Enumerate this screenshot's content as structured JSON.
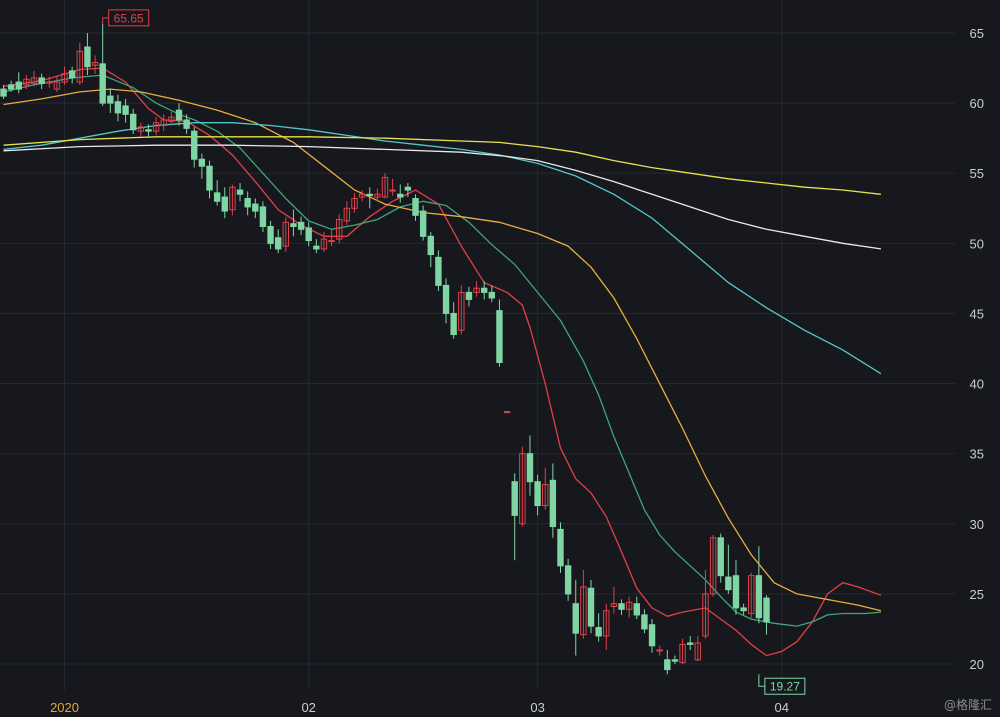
{
  "watermark": "@格隆汇",
  "colors": {
    "background": "#16181d",
    "up": "#e0404a",
    "down": "#7fd6a4",
    "grid": "#262931"
  },
  "chart_data": {
    "type": "candlestick",
    "y_ticks": [
      20,
      25,
      30,
      35,
      40,
      45,
      50,
      55,
      60,
      65
    ],
    "ylim": [
      18.5,
      67.3
    ],
    "x_ticks": [
      {
        "label": "2020",
        "index": 8,
        "style": "year"
      },
      {
        "label": "02",
        "index": 40
      },
      {
        "label": "03",
        "index": 70
      },
      {
        "label": "04",
        "index": 102
      }
    ],
    "annotations": [
      {
        "label": "65.65",
        "index": 13,
        "value": 65.65,
        "kind": "high"
      },
      {
        "label": "19.27",
        "index": 99,
        "value": 19.27,
        "kind": "low"
      }
    ],
    "candles": [
      [
        61.0,
        60.5,
        61.3,
        60.3
      ],
      [
        61.3,
        61.0,
        61.6,
        60.8
      ],
      [
        61.5,
        61.0,
        62.2,
        60.7
      ],
      [
        61.3,
        61.7,
        62.0,
        61.0
      ],
      [
        61.4,
        61.8,
        62.3,
        61.2
      ],
      [
        61.8,
        61.4,
        62.1,
        61.0
      ],
      [
        61.5,
        61.5,
        61.9,
        61.1
      ],
      [
        61.0,
        61.5,
        61.9,
        60.8
      ],
      [
        61.5,
        62.1,
        62.6,
        61.3
      ],
      [
        62.3,
        61.8,
        62.6,
        61.4
      ],
      [
        61.5,
        63.7,
        64.3,
        61.3
      ],
      [
        64.0,
        62.6,
        65.0,
        62.0
      ],
      [
        62.7,
        62.9,
        63.4,
        62.1
      ],
      [
        62.8,
        60.0,
        65.65,
        59.8
      ],
      [
        60.5,
        60.0,
        61.0,
        59.3
      ],
      [
        60.1,
        59.3,
        60.6,
        58.7
      ],
      [
        59.8,
        59.2,
        60.3,
        58.6
      ],
      [
        59.2,
        58.1,
        59.6,
        57.8
      ],
      [
        58.0,
        58.3,
        58.6,
        57.6
      ],
      [
        58.1,
        58.0,
        58.5,
        57.6
      ],
      [
        58.0,
        58.6,
        59.0,
        57.7
      ],
      [
        58.4,
        58.8,
        59.2,
        58.0
      ],
      [
        58.7,
        59.0,
        59.4,
        58.4
      ],
      [
        59.5,
        58.8,
        60.0,
        58.4
      ],
      [
        58.8,
        58.2,
        59.2,
        57.8
      ],
      [
        58.0,
        56.0,
        58.3,
        55.4
      ],
      [
        56.0,
        55.5,
        56.4,
        54.6
      ],
      [
        55.5,
        53.8,
        55.9,
        53.2
      ],
      [
        53.6,
        53.0,
        54.5,
        52.7
      ],
      [
        53.3,
        52.3,
        54.0,
        51.8
      ],
      [
        52.4,
        54.0,
        54.2,
        52.0
      ],
      [
        53.8,
        53.5,
        54.3,
        53.0
      ],
      [
        53.2,
        52.6,
        53.7,
        52.0
      ],
      [
        52.8,
        52.3,
        53.2,
        51.8
      ],
      [
        52.6,
        51.2,
        53.0,
        50.8
      ],
      [
        51.2,
        50.0,
        51.6,
        49.6
      ],
      [
        50.4,
        49.6,
        51.0,
        49.3
      ],
      [
        49.8,
        51.5,
        51.9,
        49.4
      ],
      [
        51.4,
        51.2,
        52.4,
        50.5
      ],
      [
        51.5,
        51.0,
        51.9,
        50.6
      ],
      [
        51.1,
        50.2,
        51.5,
        49.8
      ],
      [
        49.8,
        49.6,
        50.3,
        49.3
      ],
      [
        49.6,
        50.3,
        50.8,
        49.4
      ],
      [
        50.2,
        50.2,
        51.0,
        49.8
      ],
      [
        50.3,
        51.7,
        52.1,
        50.0
      ],
      [
        51.6,
        52.5,
        53.0,
        51.3
      ],
      [
        52.5,
        53.2,
        53.6,
        52.2
      ],
      [
        53.3,
        53.5,
        53.8,
        53.0
      ],
      [
        53.5,
        53.4,
        54.0,
        52.5
      ],
      [
        53.3,
        53.5,
        53.9,
        53.0
      ],
      [
        53.3,
        54.7,
        55.0,
        53.2
      ],
      [
        53.8,
        53.8,
        54.6,
        53.4
      ],
      [
        53.5,
        53.3,
        54.2,
        52.9
      ],
      [
        54.0,
        53.8,
        54.3,
        53.3
      ],
      [
        53.2,
        52.0,
        53.5,
        51.6
      ],
      [
        52.3,
        50.5,
        52.7,
        50.2
      ],
      [
        50.5,
        49.2,
        50.8,
        48.3
      ],
      [
        49.0,
        47.0,
        49.5,
        46.6
      ],
      [
        47.0,
        45.0,
        47.5,
        44.3
      ],
      [
        45.0,
        43.5,
        45.8,
        43.2
      ],
      [
        43.8,
        46.5,
        47.0,
        43.5
      ],
      [
        46.5,
        46.0,
        46.9,
        45.5
      ],
      [
        46.5,
        46.8,
        47.3,
        46.2
      ],
      [
        46.8,
        46.5,
        47.3,
        46.0
      ],
      [
        46.5,
        46.1,
        47.0,
        45.8
      ],
      [
        45.2,
        41.5,
        46.0,
        41.2
      ],
      [
        38.0,
        38.0,
        38.0,
        38.0
      ],
      [
        33.0,
        30.6,
        33.6,
        27.4
      ],
      [
        30.0,
        35.0,
        35.5,
        29.8
      ],
      [
        35.0,
        33.0,
        36.3,
        32.0
      ],
      [
        33.0,
        31.3,
        33.5,
        30.6
      ],
      [
        31.3,
        32.8,
        34.0,
        31.0
      ],
      [
        33.1,
        29.8,
        34.3,
        29.0
      ],
      [
        29.6,
        27.0,
        30.1,
        26.5
      ],
      [
        27.0,
        25.0,
        27.5,
        24.5
      ],
      [
        24.3,
        22.2,
        26.0,
        20.6
      ],
      [
        22.1,
        25.5,
        26.7,
        21.8
      ],
      [
        25.4,
        22.7,
        26.0,
        22.2
      ],
      [
        22.6,
        22.0,
        23.6,
        21.6
      ],
      [
        22.0,
        23.8,
        24.3,
        21.0
      ],
      [
        24.1,
        24.3,
        25.5,
        23.6
      ],
      [
        24.3,
        23.9,
        24.6,
        23.5
      ],
      [
        23.9,
        24.4,
        24.8,
        23.3
      ],
      [
        24.3,
        23.5,
        24.8,
        23.2
      ],
      [
        23.5,
        22.5,
        23.9,
        22.2
      ],
      [
        22.8,
        21.3,
        23.2,
        20.8
      ],
      [
        21.0,
        21.0,
        21.3,
        20.6
      ],
      [
        20.3,
        19.6,
        21.0,
        19.27
      ],
      [
        20.3,
        20.2,
        20.6,
        20.0
      ],
      [
        20.1,
        21.4,
        21.8,
        20.0
      ],
      [
        21.5,
        21.4,
        22.0,
        21.0
      ],
      [
        20.3,
        21.5,
        22.0,
        20.2
      ],
      [
        22.0,
        25.0,
        26.7,
        21.8
      ],
      [
        25.0,
        29.0,
        29.2,
        24.8
      ],
      [
        29.0,
        26.3,
        29.3,
        25.8
      ],
      [
        26.2,
        25.3,
        28.5,
        25.0
      ],
      [
        26.3,
        24.0,
        27.4,
        23.5
      ],
      [
        24.0,
        23.8,
        24.3,
        23.5
      ],
      [
        23.6,
        26.3,
        26.5,
        23.3
      ],
      [
        26.3,
        23.3,
        28.4,
        22.9
      ],
      [
        24.7,
        23.0,
        24.9,
        22.1
      ]
    ],
    "ma_lines": [
      {
        "color": "#e0404a",
        "values": [
          [
            0,
            61.2
          ],
          [
            5,
            61.6
          ],
          [
            10,
            62.4
          ],
          [
            13,
            62.5
          ],
          [
            16,
            61.5
          ],
          [
            19,
            59.6
          ],
          [
            21,
            58.8
          ],
          [
            24,
            58.7
          ],
          [
            27,
            57.7
          ],
          [
            30,
            56.3
          ],
          [
            33,
            54.4
          ],
          [
            36,
            52.4
          ],
          [
            39,
            51.3
          ],
          [
            42,
            50.5
          ],
          [
            45,
            50.5
          ],
          [
            48,
            51.9
          ],
          [
            51,
            53.0
          ],
          [
            54,
            53.8
          ],
          [
            57,
            52.8
          ],
          [
            60,
            49.8
          ],
          [
            63,
            47.2
          ],
          [
            66,
            46.5
          ],
          [
            68,
            45.6
          ],
          [
            69,
            44.0
          ],
          [
            71,
            40.0
          ],
          [
            73,
            35.4
          ],
          [
            75,
            33.2
          ],
          [
            77,
            32.2
          ],
          [
            79,
            30.5
          ],
          [
            81,
            28.0
          ],
          [
            83,
            25.4
          ],
          [
            85,
            24.0
          ],
          [
            87,
            23.4
          ],
          [
            89,
            23.7
          ],
          [
            92,
            24.0
          ],
          [
            94,
            23.2
          ],
          [
            96,
            22.4
          ],
          [
            98,
            21.4
          ],
          [
            100,
            20.6
          ],
          [
            102,
            20.9
          ],
          [
            104,
            21.6
          ],
          [
            106,
            23.0
          ],
          [
            108,
            25.0
          ],
          [
            110,
            25.8
          ],
          [
            112,
            25.5
          ],
          [
            115,
            24.9
          ]
        ]
      },
      {
        "color": "#3fa57e",
        "values": [
          [
            0,
            60.8
          ],
          [
            4,
            61.3
          ],
          [
            9,
            61.8
          ],
          [
            13,
            62.0
          ],
          [
            17,
            61.1
          ],
          [
            20,
            60.0
          ],
          [
            23,
            59.2
          ],
          [
            25,
            58.8
          ],
          [
            28,
            58.0
          ],
          [
            31,
            56.8
          ],
          [
            34,
            55.0
          ],
          [
            37,
            53.2
          ],
          [
            40,
            51.6
          ],
          [
            43,
            51.0
          ],
          [
            46,
            51.3
          ],
          [
            49,
            51.7
          ],
          [
            52,
            52.6
          ],
          [
            55,
            53.0
          ],
          [
            58,
            52.7
          ],
          [
            61,
            51.5
          ],
          [
            64,
            49.9
          ],
          [
            67,
            48.5
          ],
          [
            70,
            46.5
          ],
          [
            73,
            44.5
          ],
          [
            76,
            41.6
          ],
          [
            78,
            39.2
          ],
          [
            80,
            36.2
          ],
          [
            82,
            33.6
          ],
          [
            84,
            31.0
          ],
          [
            86,
            29.2
          ],
          [
            88,
            28.0
          ],
          [
            90,
            27.0
          ],
          [
            92,
            26.0
          ],
          [
            94,
            24.8
          ],
          [
            96,
            23.7
          ],
          [
            98,
            23.2
          ],
          [
            101,
            22.9
          ],
          [
            104,
            22.7
          ],
          [
            106,
            23.0
          ],
          [
            108,
            23.5
          ],
          [
            110,
            23.6
          ],
          [
            113,
            23.6
          ],
          [
            115,
            23.7
          ]
        ]
      },
      {
        "color": "#e9ad3d",
        "values": [
          [
            0,
            59.9
          ],
          [
            5,
            60.3
          ],
          [
            10,
            60.8
          ],
          [
            14,
            61.0
          ],
          [
            18,
            60.8
          ],
          [
            23,
            60.2
          ],
          [
            28,
            59.5
          ],
          [
            33,
            58.6
          ],
          [
            38,
            57.2
          ],
          [
            42,
            55.5
          ],
          [
            46,
            53.8
          ],
          [
            50,
            52.8
          ],
          [
            55,
            52.2
          ],
          [
            60,
            51.9
          ],
          [
            65,
            51.5
          ],
          [
            70,
            50.7
          ],
          [
            74,
            49.8
          ],
          [
            77,
            48.3
          ],
          [
            80,
            46.1
          ],
          [
            83,
            43.2
          ],
          [
            86,
            40.0
          ],
          [
            89,
            36.8
          ],
          [
            92,
            33.4
          ],
          [
            95,
            30.4
          ],
          [
            98,
            27.8
          ],
          [
            101,
            25.8
          ],
          [
            104,
            25.0
          ],
          [
            108,
            24.6
          ],
          [
            112,
            24.2
          ],
          [
            115,
            23.8
          ]
        ]
      },
      {
        "color": "#53c8cb",
        "values": [
          [
            0,
            56.7
          ],
          [
            5,
            57.0
          ],
          [
            10,
            57.5
          ],
          [
            15,
            58.0
          ],
          [
            20,
            58.4
          ],
          [
            25,
            58.6
          ],
          [
            30,
            58.6
          ],
          [
            35,
            58.4
          ],
          [
            40,
            58.1
          ],
          [
            45,
            57.7
          ],
          [
            50,
            57.3
          ],
          [
            55,
            57.0
          ],
          [
            60,
            56.7
          ],
          [
            65,
            56.3
          ],
          [
            70,
            55.7
          ],
          [
            75,
            54.8
          ],
          [
            80,
            53.5
          ],
          [
            85,
            51.8
          ],
          [
            90,
            49.5
          ],
          [
            95,
            47.2
          ],
          [
            100,
            45.4
          ],
          [
            105,
            43.8
          ],
          [
            110,
            42.4
          ],
          [
            115,
            40.7
          ]
        ]
      },
      {
        "color": "#e8e8e8",
        "values": [
          [
            0,
            56.6
          ],
          [
            10,
            56.9
          ],
          [
            20,
            57.0
          ],
          [
            30,
            57.0
          ],
          [
            40,
            56.9
          ],
          [
            50,
            56.7
          ],
          [
            60,
            56.5
          ],
          [
            66,
            56.2
          ],
          [
            70,
            55.9
          ],
          [
            75,
            55.2
          ],
          [
            80,
            54.4
          ],
          [
            85,
            53.5
          ],
          [
            90,
            52.6
          ],
          [
            95,
            51.7
          ],
          [
            100,
            51.0
          ],
          [
            105,
            50.5
          ],
          [
            110,
            50.0
          ],
          [
            115,
            49.6
          ]
        ]
      },
      {
        "color": "#e8e24e",
        "values": [
          [
            0,
            57.0
          ],
          [
            10,
            57.4
          ],
          [
            20,
            57.6
          ],
          [
            30,
            57.6
          ],
          [
            40,
            57.6
          ],
          [
            50,
            57.5
          ],
          [
            60,
            57.3
          ],
          [
            65,
            57.2
          ],
          [
            70,
            56.9
          ],
          [
            75,
            56.5
          ],
          [
            80,
            55.9
          ],
          [
            85,
            55.4
          ],
          [
            90,
            55.0
          ],
          [
            95,
            54.6
          ],
          [
            100,
            54.3
          ],
          [
            105,
            54.0
          ],
          [
            110,
            53.8
          ],
          [
            115,
            53.5
          ]
        ]
      }
    ]
  }
}
